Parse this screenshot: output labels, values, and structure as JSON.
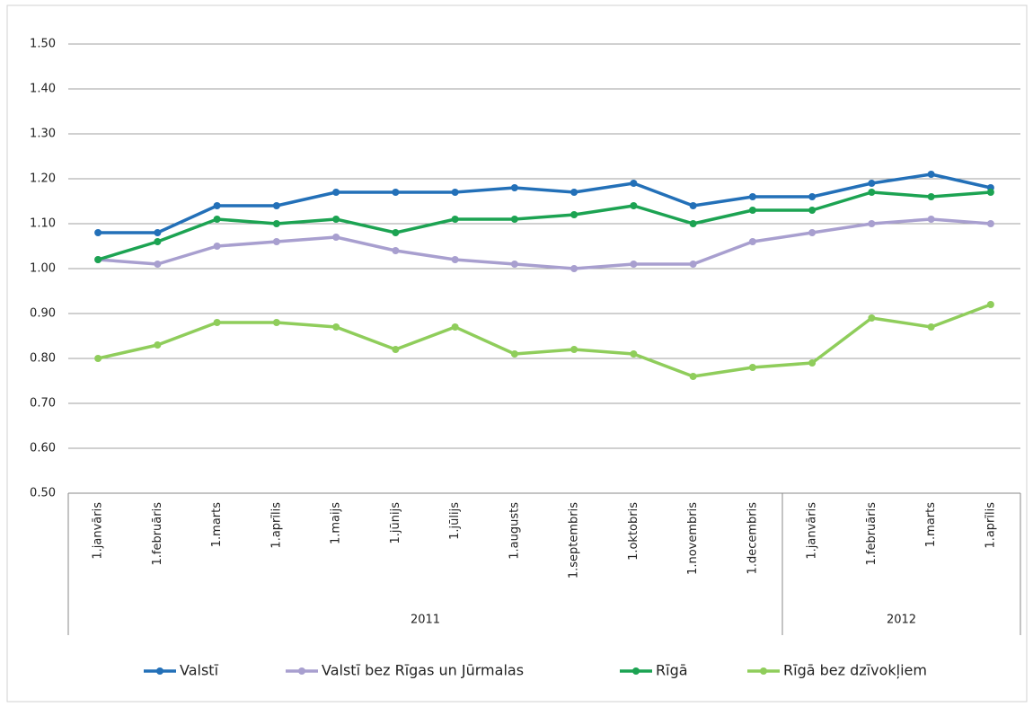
{
  "chart_data": {
    "type": "line",
    "groups": [
      {
        "name": "2011",
        "categories": [
          "1.janvāris",
          "1.februāris",
          "1.marts",
          "1.aprīlis",
          "1.maijs",
          "1.jūnijs",
          "1.jūlijs",
          "1.augusts",
          "1.septembris",
          "1.oktobris",
          "1.novembris",
          "1.decembris"
        ]
      },
      {
        "name": "2012",
        "categories": [
          "1.janvāris",
          "1.februāris",
          "1.marts",
          "1.aprīlis"
        ]
      }
    ],
    "series": [
      {
        "name": "Valstī",
        "color": "#2370b8",
        "values": [
          1.08,
          1.08,
          1.14,
          1.14,
          1.17,
          1.17,
          1.17,
          1.18,
          1.17,
          1.19,
          1.14,
          1.16,
          1.16,
          1.19,
          1.21,
          1.18
        ]
      },
      {
        "name": "Valstī bez Rīgas un Jūrmalas",
        "color": "#a89fcf",
        "values": [
          1.02,
          1.01,
          1.05,
          1.06,
          1.07,
          1.04,
          1.02,
          1.01,
          1.0,
          1.01,
          1.01,
          1.06,
          1.08,
          1.1,
          1.11,
          1.1
        ]
      },
      {
        "name": "Rīgā",
        "color": "#1ca352",
        "values": [
          1.02,
          1.06,
          1.11,
          1.1,
          1.11,
          1.08,
          1.11,
          1.11,
          1.12,
          1.14,
          1.1,
          1.13,
          1.13,
          1.17,
          1.16,
          1.17
        ]
      },
      {
        "name": "Rīgā bez dzīvokļiem",
        "color": "#8fcd5b",
        "values": [
          0.8,
          0.83,
          0.88,
          0.88,
          0.87,
          0.82,
          0.87,
          0.81,
          0.82,
          0.81,
          0.76,
          0.78,
          0.79,
          0.89,
          0.87,
          0.92
        ]
      }
    ],
    "ylim": [
      0.5,
      1.5
    ],
    "yticks": [
      {
        "value": 0.5,
        "label": "0.50"
      },
      {
        "value": 0.6,
        "label": "0.60"
      },
      {
        "value": 0.7,
        "label": "0.70"
      },
      {
        "value": 0.8,
        "label": "0.80"
      },
      {
        "value": 0.9,
        "label": "0.90"
      },
      {
        "value": 1,
        "label": "1.00"
      },
      {
        "value": 1.1,
        "label": "1.10"
      },
      {
        "value": 1.2,
        "label": "1.20"
      },
      {
        "value": 1.3,
        "label": "1.30"
      },
      {
        "value": 1.4,
        "label": "1.40"
      },
      {
        "value": 1.5,
        "label": "1.50"
      }
    ],
    "grid": true,
    "legend": "bottom"
  }
}
